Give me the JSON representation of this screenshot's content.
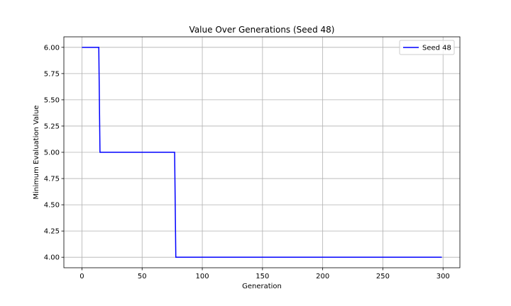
{
  "chart_data": {
    "type": "line",
    "title": "Value Over Generations (Seed 48)",
    "xlabel": "Generation",
    "ylabel": "Minimum Evaluation Value",
    "xlim": [
      -15,
      314
    ],
    "ylim": [
      3.9,
      6.1
    ],
    "xticks": [
      0,
      50,
      100,
      150,
      200,
      250,
      300
    ],
    "yticks": [
      4.0,
      4.25,
      4.5,
      4.75,
      5.0,
      5.25,
      5.5,
      5.75,
      6.0
    ],
    "xtick_labels": [
      "0",
      "50",
      "100",
      "150",
      "200",
      "250",
      "300"
    ],
    "ytick_labels": [
      "4.00",
      "4.25",
      "4.50",
      "4.75",
      "5.00",
      "5.25",
      "5.50",
      "5.75",
      "6.00"
    ],
    "grid": true,
    "legend_position": "top-right",
    "series": [
      {
        "name": "Seed 48",
        "color": "#0000ff",
        "step": true,
        "points": [
          {
            "x": 0,
            "y": 6.0
          },
          {
            "x": 14,
            "y": 6.0
          },
          {
            "x": 15,
            "y": 5.0
          },
          {
            "x": 77,
            "y": 5.0
          },
          {
            "x": 78,
            "y": 4.0
          },
          {
            "x": 299,
            "y": 4.0
          }
        ]
      }
    ]
  }
}
